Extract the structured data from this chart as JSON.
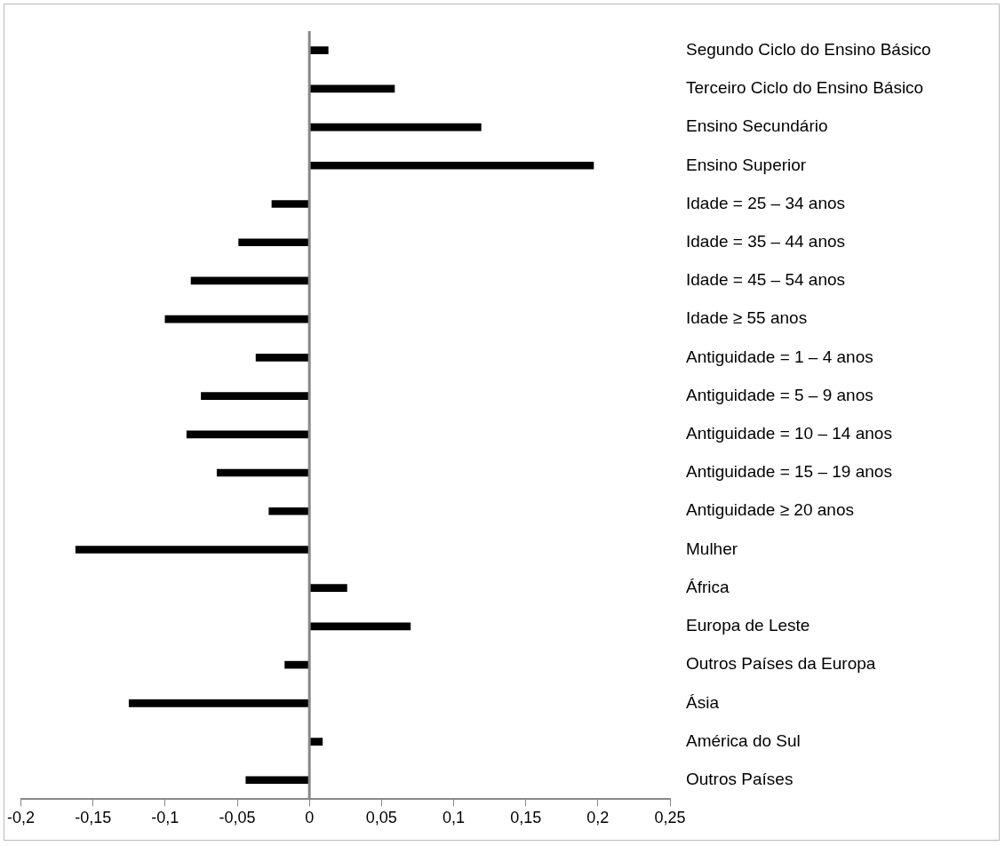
{
  "chart_data": {
    "type": "bar",
    "orientation": "horizontal",
    "categories": [
      "Segundo Ciclo do Ensino Básico",
      "Terceiro Ciclo do Ensino Básico",
      "Ensino Secundário",
      "Ensino Superior",
      "Idade = 25 – 34 anos",
      "Idade = 35 – 44 anos",
      "Idade = 45 – 54 anos",
      "Idade ≥ 55 anos",
      "Antiguidade = 1 – 4 anos",
      "Antiguidade = 5 – 9 anos",
      "Antiguidade = 10 – 14 anos",
      "Antiguidade = 15 – 19 anos",
      "Antiguidade ≥ 20 anos",
      "Mulher",
      "África",
      "Europa de Leste",
      "Outros Países da Europa",
      "Ásia",
      "América do Sul",
      "Outros Países"
    ],
    "values": [
      0.013,
      0.059,
      0.119,
      0.197,
      -0.026,
      -0.049,
      -0.082,
      -0.1,
      -0.037,
      -0.075,
      -0.085,
      -0.064,
      -0.028,
      -0.162,
      0.026,
      0.07,
      -0.017,
      -0.125,
      0.009,
      -0.044
    ],
    "color": "#000000",
    "xlim": [
      -0.2,
      0.25
    ],
    "xticks": [
      {
        "value": -0.2,
        "label": "-0,2"
      },
      {
        "value": -0.15,
        "label": "-0,15"
      },
      {
        "value": -0.1,
        "label": "-0,1"
      },
      {
        "value": -0.05,
        "label": "-0,05"
      },
      0,
      {
        "value": 0.05,
        "label": "0,05"
      },
      {
        "value": 0.1,
        "label": "0,1"
      },
      {
        "value": 0.15,
        "label": "0,15"
      },
      {
        "value": 0.2,
        "label": "0,2"
      },
      {
        "value": 0.25,
        "label": "0,25"
      }
    ],
    "ref_lines": [
      {
        "axis": "x",
        "value": 0,
        "color": "#888888"
      }
    ],
    "grid": false,
    "legend": false
  }
}
